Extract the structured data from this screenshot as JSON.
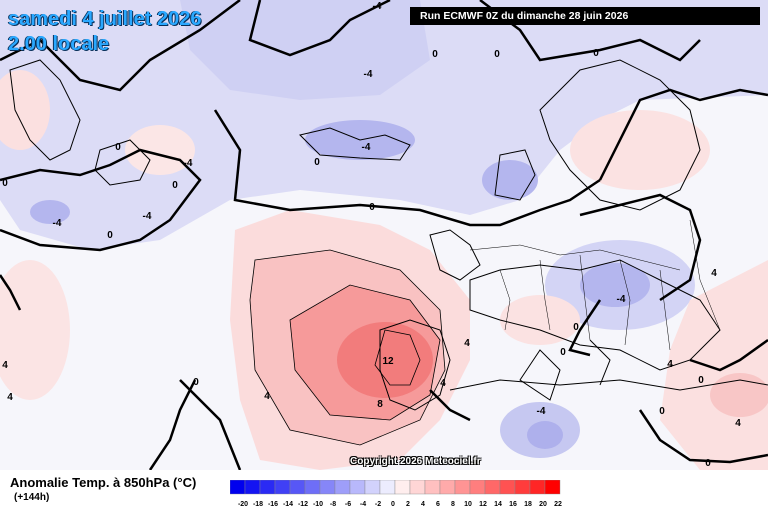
{
  "header": {
    "date": "samedi 4 juillet 2026",
    "time": "2.00 locale",
    "run": "Run ECMWF 0Z du dimanche 28 juin 2026"
  },
  "footer": {
    "variable": "Anomalie Temp. à 850hPa (°C)",
    "lead": "(+144h)",
    "copyright": "Copyright 2026 Meteociel.fr"
  },
  "legend": {
    "values": [
      "-20",
      "-18",
      "-16",
      "-14",
      "-12",
      "-10",
      "-8",
      "-6",
      "-4",
      "-2",
      "0",
      "2",
      "4",
      "6",
      "8",
      "10",
      "12",
      "14",
      "16",
      "18",
      "20",
      "22"
    ],
    "colors": [
      "#0000ee",
      "#1414f2",
      "#2a2af4",
      "#4040f5",
      "#5757f6",
      "#6e6ef7",
      "#8686f8",
      "#9e9ef9",
      "#b8b8fb",
      "#d2d2fc",
      "#ececfe",
      "#ffeeee",
      "#ffd6d6",
      "#ffc0c0",
      "#ffaaaa",
      "#ff9494",
      "#ff7e7e",
      "#ff6868",
      "#ff5252",
      "#ff3c3c",
      "#ff2626",
      "#ff0000"
    ]
  },
  "contour_labels": [
    "-4",
    "-4",
    "0",
    "0",
    "0",
    "-4",
    "0",
    "-4",
    "0",
    "-4",
    "-4",
    "0",
    "0",
    "0",
    "0",
    "4",
    "0",
    "4",
    "-4",
    "12",
    "8",
    "4",
    "4",
    "4",
    "0",
    "0",
    "4",
    "-4",
    "0",
    "4",
    "0",
    "4",
    "0"
  ]
}
